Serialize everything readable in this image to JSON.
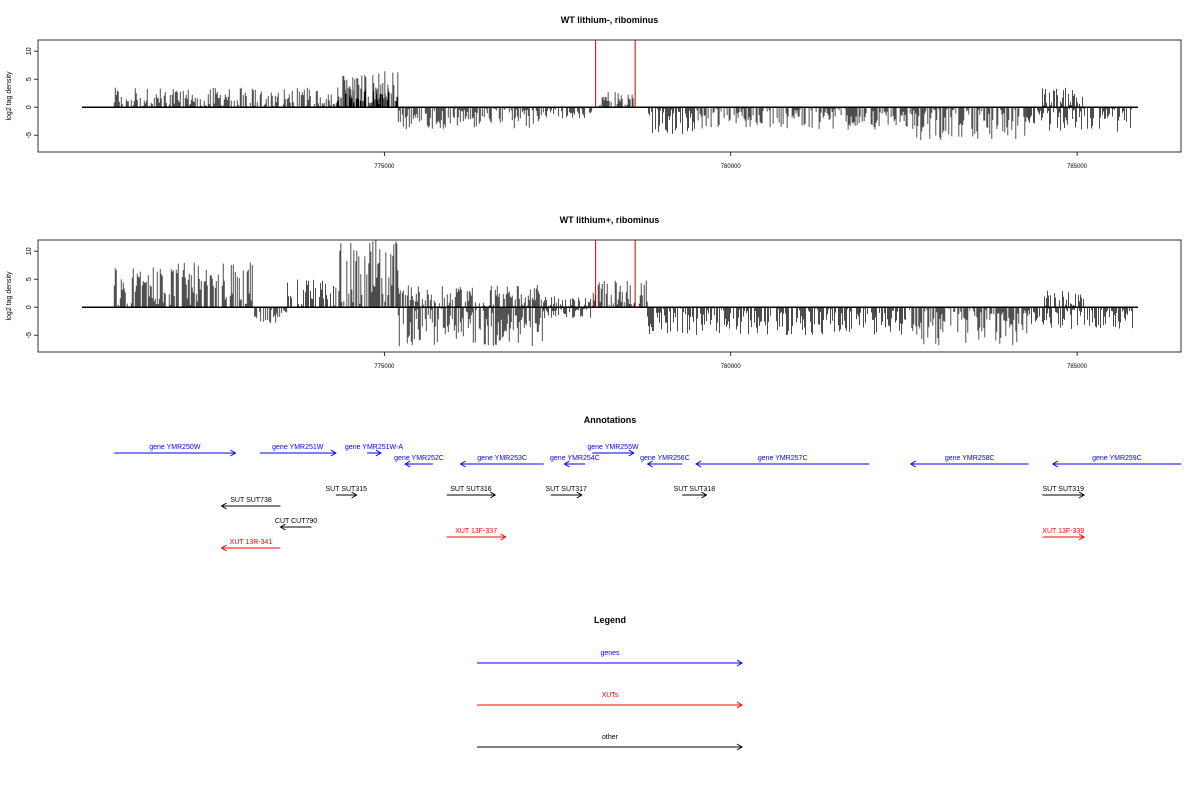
{
  "chart_data": [
    {
      "type": "bar",
      "title": "WT lithium-, ribominus",
      "xlabel": "",
      "ylabel": "log2 tag density",
      "xlim": [
        770000,
        786500
      ],
      "ylim": [
        -8,
        12
      ],
      "xticks": [
        775000,
        780000,
        785000
      ],
      "xtick_labels": [
        "775000",
        "780000",
        "785000"
      ],
      "yticks": [
        -5,
        0,
        5,
        10
      ],
      "ytick_labels": [
        "-5",
        "0",
        "5",
        "10"
      ],
      "grid": false,
      "series": [
        {
          "color": "#000000",
          "segments": [
            {
              "start": 771100,
              "end": 775200,
              "min": 0,
              "max": 3.5
            },
            {
              "start": 774300,
              "end": 775200,
              "min": 0,
              "max": 6.5
            },
            {
              "start": 775200,
              "end": 777300,
              "min": -4,
              "max": 0
            },
            {
              "start": 777300,
              "end": 778000,
              "min": -2,
              "max": 0
            },
            {
              "start": 778100,
              "end": 778600,
              "min": 0,
              "max": 3
            },
            {
              "start": 778800,
              "end": 779500,
              "min": -5,
              "max": 0
            },
            {
              "start": 779500,
              "end": 782600,
              "min": -4,
              "max": 0
            },
            {
              "start": 782600,
              "end": 784300,
              "min": -6,
              "max": 0
            },
            {
              "start": 784300,
              "end": 784500,
              "min": -3,
              "max": 0
            },
            {
              "start": 784500,
              "end": 785100,
              "min": 0,
              "max": 3.5
            },
            {
              "start": 784500,
              "end": 785800,
              "min": -4.5,
              "max": 0
            }
          ]
        },
        {
          "color": "#cc0000",
          "spikes": [
            {
              "x": 778050,
              "y": 12
            },
            {
              "x": 778620,
              "y": 12
            }
          ]
        }
      ]
    },
    {
      "type": "bar",
      "title": "WT lithium+, ribominus",
      "xlabel": "",
      "ylabel": "log2 tag density",
      "xlim": [
        770000,
        786500
      ],
      "ylim": [
        -8,
        12
      ],
      "xticks": [
        775000,
        780000,
        785000
      ],
      "xtick_labels": [
        "775000",
        "780000",
        "785000"
      ],
      "yticks": [
        -5,
        0,
        5,
        10
      ],
      "ytick_labels": [
        "-5",
        "0",
        "5",
        "10"
      ],
      "grid": false,
      "series": [
        {
          "color": "#000000",
          "segments": [
            {
              "start": 771100,
              "end": 773100,
              "min": 0,
              "max": 8
            },
            {
              "start": 773100,
              "end": 773600,
              "min": -3,
              "max": 0
            },
            {
              "start": 773600,
              "end": 774300,
              "min": 0,
              "max": 5
            },
            {
              "start": 774300,
              "end": 775200,
              "min": 0,
              "max": 12
            },
            {
              "start": 775200,
              "end": 777300,
              "min": -7,
              "max": 4
            },
            {
              "start": 777300,
              "end": 778000,
              "min": -2,
              "max": 2
            },
            {
              "start": 778000,
              "end": 778800,
              "min": 0,
              "max": 5
            },
            {
              "start": 778800,
              "end": 782600,
              "min": -5,
              "max": 0
            },
            {
              "start": 782600,
              "end": 784300,
              "min": -7,
              "max": 0
            },
            {
              "start": 784300,
              "end": 784500,
              "min": -3,
              "max": 0
            },
            {
              "start": 784500,
              "end": 785100,
              "min": 0,
              "max": 3
            },
            {
              "start": 784500,
              "end": 785800,
              "min": -4,
              "max": 0
            }
          ]
        },
        {
          "color": "#cc0000",
          "spikes": [
            {
              "x": 778050,
              "y": 12
            },
            {
              "x": 778620,
              "y": 12
            }
          ]
        }
      ]
    },
    {
      "type": "annotation-track",
      "title": "Annotations",
      "features": [
        {
          "label": "gene YMR250W",
          "start": 771100,
          "end": 772850,
          "strand": "+",
          "color": "#0000ff",
          "row": 0
        },
        {
          "label": "gene YMR251W",
          "start": 773200,
          "end": 774300,
          "strand": "+",
          "color": "#0000ff",
          "row": 0
        },
        {
          "label": "gene YMR251W-A",
          "start": 774750,
          "end": 774950,
          "strand": "+",
          "color": "#0000ff",
          "row": 0
        },
        {
          "label": "gene YMR252C",
          "start": 775300,
          "end": 775700,
          "strand": "-",
          "color": "#0000ff",
          "row": 1
        },
        {
          "label": "gene YMR253C",
          "start": 776100,
          "end": 777300,
          "strand": "-",
          "color": "#0000ff",
          "row": 1
        },
        {
          "label": "gene YMR254C",
          "start": 777600,
          "end": 777900,
          "strand": "-",
          "color": "#0000ff",
          "row": 1
        },
        {
          "label": "gene YMR255W",
          "start": 778000,
          "end": 778600,
          "strand": "+",
          "color": "#0000ff",
          "row": 0
        },
        {
          "label": "gene YMR256C",
          "start": 778800,
          "end": 779300,
          "strand": "-",
          "color": "#0000ff",
          "row": 1
        },
        {
          "label": "gene YMR257C",
          "start": 779500,
          "end": 782000,
          "strand": "-",
          "color": "#0000ff",
          "row": 1
        },
        {
          "label": "gene YMR258C",
          "start": 782600,
          "end": 784300,
          "strand": "-",
          "color": "#0000ff",
          "row": 1
        },
        {
          "label": "gene YMR259C",
          "start": 784650,
          "end": 786500,
          "strand": "-",
          "color": "#0000ff",
          "row": 1
        },
        {
          "label": "SUT SUT738",
          "start": 772650,
          "end": 773500,
          "strand": "-",
          "color": "#000000",
          "row": 3
        },
        {
          "label": "SUT SUT315",
          "start": 774300,
          "end": 774600,
          "strand": "+",
          "color": "#000000",
          "row": 2
        },
        {
          "label": "SUT SUT316",
          "start": 775900,
          "end": 776600,
          "strand": "+",
          "color": "#000000",
          "row": 2
        },
        {
          "label": "SUT SUT317",
          "start": 777400,
          "end": 777850,
          "strand": "+",
          "color": "#000000",
          "row": 2
        },
        {
          "label": "SUT SUT318",
          "start": 779300,
          "end": 779650,
          "strand": "+",
          "color": "#000000",
          "row": 2
        },
        {
          "label": "SUT SUT319",
          "start": 784500,
          "end": 785100,
          "strand": "+",
          "color": "#000000",
          "row": 2
        },
        {
          "label": "CUT CUT790",
          "start": 773500,
          "end": 773950,
          "strand": "-",
          "color": "#000000",
          "row": 4
        },
        {
          "label": "XUT 13F-337",
          "start": 775900,
          "end": 776750,
          "strand": "+",
          "color": "#ff0000",
          "row": 5
        },
        {
          "label": "XUT 13R-341",
          "start": 772650,
          "end": 773500,
          "strand": "-",
          "color": "#ff0000",
          "row": 6
        },
        {
          "label": "XUT 13F-339",
          "start": 784500,
          "end": 785100,
          "strand": "+",
          "color": "#ff0000",
          "row": 5
        }
      ]
    },
    {
      "type": "legend",
      "title": "Legend",
      "entries": [
        {
          "label": "genes",
          "color": "#0000ff"
        },
        {
          "label": "XUTs",
          "color": "#ff0000"
        },
        {
          "label": "other",
          "color": "#000000"
        }
      ]
    }
  ]
}
